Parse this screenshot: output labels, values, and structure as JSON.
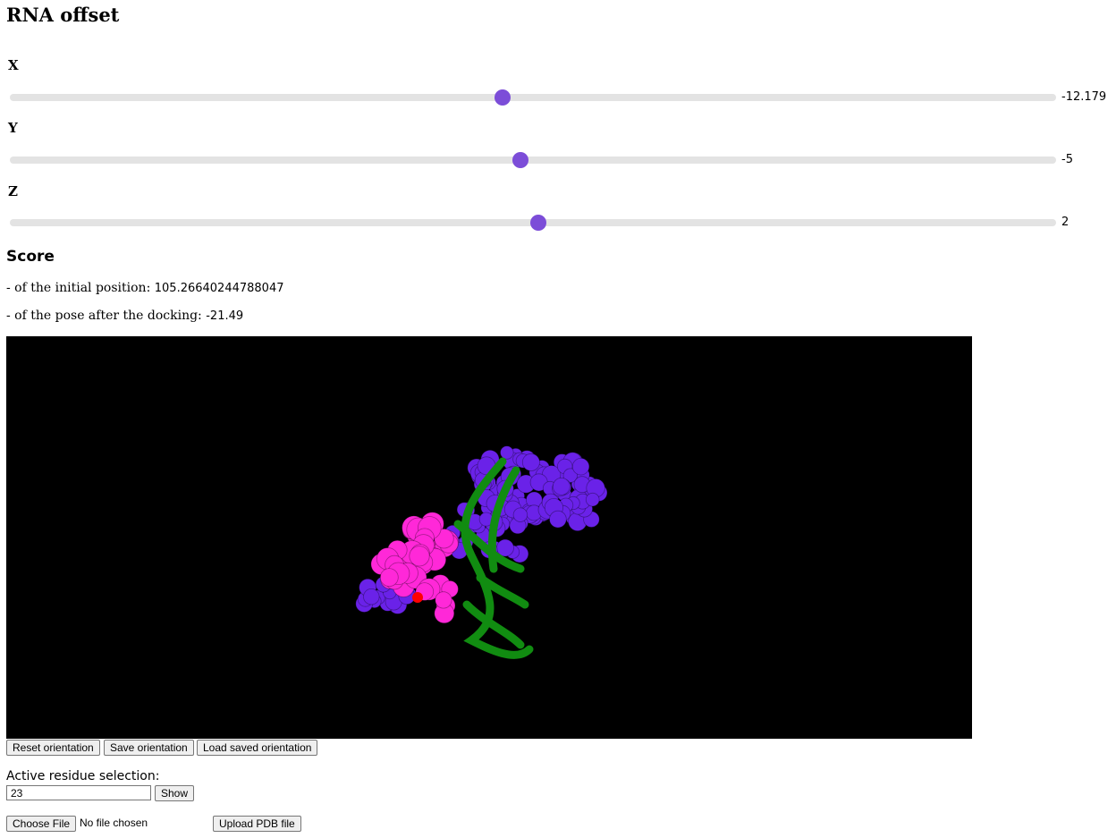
{
  "title": "RNA offset",
  "sliders": [
    {
      "id": "x",
      "label": "X",
      "value": "-12.179",
      "fraction": 0.471
    },
    {
      "id": "y",
      "label": "Y",
      "value": "-5",
      "fraction": 0.488
    },
    {
      "id": "z",
      "label": "Z",
      "value": "2",
      "fraction": 0.505
    }
  ],
  "score": {
    "title": "Score",
    "initial_label": "- of the initial position: ",
    "initial_value": "105.26640244788047",
    "docked_label": "- of the pose after the docking: ",
    "docked_value": "-21.49"
  },
  "viewer": {
    "background": "#000000",
    "colors": {
      "protein_spheres": "#6a22e8",
      "rna_spheres": "#ff28d8",
      "ribbon": "#118c11",
      "highlight": "#ff0000"
    }
  },
  "buttons": {
    "reset": "Reset orientation",
    "save": "Save orientation",
    "load": "Load saved orientation"
  },
  "active_selection": {
    "label": "Active residue selection:",
    "value": "23",
    "show_button": "Show"
  },
  "upload": {
    "choose_button": "Choose File",
    "status": "No file chosen",
    "upload_button": "Upload PDB file"
  }
}
